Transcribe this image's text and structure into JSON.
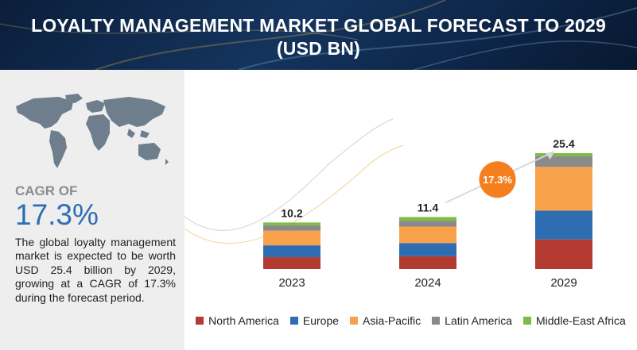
{
  "title": "LOYALTY MANAGEMENT MARKET GLOBAL FORECAST TO 2029 (USD BN)",
  "sidebar": {
    "cagr_label": "CAGR OF",
    "cagr_value": "17.3%",
    "description": "The global loyalty management market is expected to be worth USD 25.4 billion by 2029, growing at a CAGR of 17.3% during the forecast period."
  },
  "chart_data": {
    "type": "bar",
    "stacked": true,
    "categories": [
      "2023",
      "2024",
      "2029"
    ],
    "totals": [
      "10.2",
      "11.4",
      "25.4"
    ],
    "series": [
      {
        "name": "North America",
        "color": "#b23a30",
        "values": [
          2.6,
          2.8,
          6.5
        ]
      },
      {
        "name": "Europe",
        "color": "#2f6db3",
        "values": [
          2.6,
          2.9,
          6.3
        ]
      },
      {
        "name": "Asia-Pacific",
        "color": "#f7a24a",
        "values": [
          3.2,
          3.6,
          9.6
        ]
      },
      {
        "name": "Latin America",
        "color": "#8a8a8a",
        "values": [
          1.2,
          1.3,
          2.3
        ]
      },
      {
        "name": "Middle-East Africa",
        "color": "#7dbb42",
        "values": [
          0.6,
          0.8,
          0.7
        ]
      }
    ],
    "growth_badge": {
      "label": "17.3%",
      "color": "#f57f1f"
    },
    "legend_position": "bottom",
    "grid": false
  }
}
